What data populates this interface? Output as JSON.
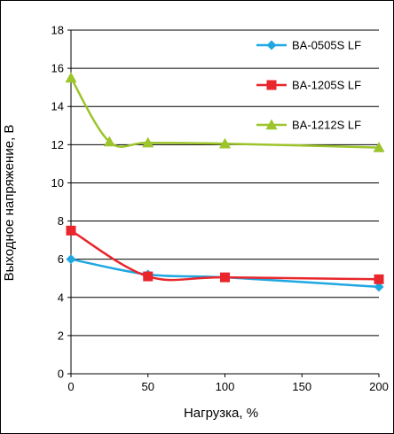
{
  "chart_data": {
    "type": "line",
    "title": "",
    "xlabel": "Нагрузка, %",
    "ylabel": "Выходное напряжение, В",
    "xlim": [
      0,
      200
    ],
    "ylim": [
      0,
      18
    ],
    "xticks": [
      0,
      50,
      100,
      150,
      200
    ],
    "yticks": [
      0,
      2,
      4,
      6,
      8,
      10,
      12,
      14,
      16,
      18
    ],
    "grid": "horizontal",
    "legend_position": "right",
    "series": [
      {
        "name": "BA-0505S LF",
        "color": "#1EA7E1",
        "marker": "diamond",
        "points": [
          [
            0,
            6.0
          ],
          [
            50,
            5.2
          ],
          [
            100,
            5.05
          ],
          [
            200,
            4.55
          ]
        ]
      },
      {
        "name": "BA-1205S LF",
        "color": "#E8262C",
        "marker": "square",
        "points": [
          [
            0,
            7.5
          ],
          [
            50,
            5.1
          ],
          [
            100,
            5.05
          ],
          [
            200,
            4.95
          ]
        ]
      },
      {
        "name": "BA-1212S LF",
        "color": "#9CC42B",
        "marker": "triangle",
        "points": [
          [
            0,
            15.5
          ],
          [
            25,
            12.15
          ],
          [
            50,
            12.1
          ],
          [
            100,
            12.05
          ],
          [
            200,
            11.85
          ]
        ]
      }
    ]
  }
}
